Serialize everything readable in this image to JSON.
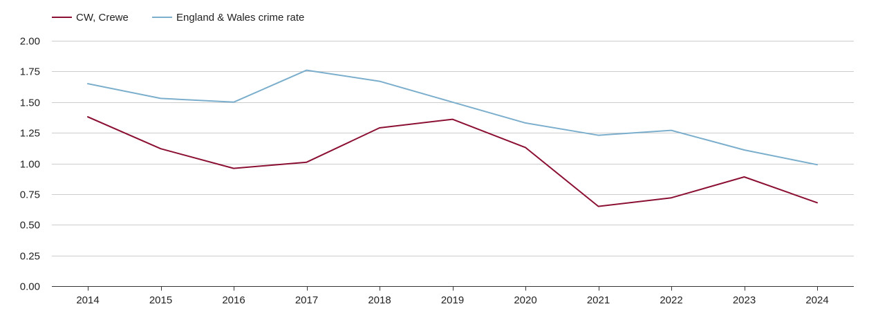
{
  "chart_data": {
    "type": "line",
    "title": "",
    "xlabel": "",
    "ylabel": "",
    "categories": [
      "2014",
      "2015",
      "2016",
      "2017",
      "2018",
      "2019",
      "2020",
      "2021",
      "2022",
      "2023",
      "2024"
    ],
    "ylim": [
      0,
      2
    ],
    "yticks": [
      0,
      0.25,
      0.5,
      0.75,
      1,
      1.25,
      1.5,
      1.75,
      2
    ],
    "ytick_labels": [
      "0.00",
      "0.25",
      "0.50",
      "0.75",
      "1.00",
      "1.25",
      "1.50",
      "1.75",
      "2.00"
    ],
    "grid": true,
    "legend_position": "top-left",
    "series": [
      {
        "name": "CW, Crewe",
        "color": "#8b0f32",
        "values": [
          1.38,
          1.12,
          0.96,
          1.01,
          1.29,
          1.36,
          1.13,
          0.65,
          0.72,
          0.89,
          0.68
        ]
      },
      {
        "name": "England & Wales crime rate",
        "color": "#7aaecc",
        "values": [
          1.65,
          1.53,
          1.5,
          1.76,
          1.67,
          1.5,
          1.33,
          1.23,
          1.27,
          1.11,
          0.99
        ]
      }
    ]
  }
}
